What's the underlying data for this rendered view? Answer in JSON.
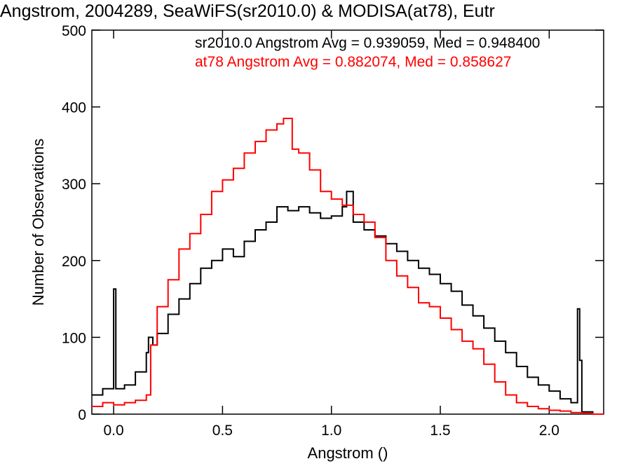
{
  "chart_data": {
    "type": "line",
    "title": "Angstrom, 2004289, SeaWiFS(sr2010.0) & MODISA(at78), Eutr",
    "xlabel": "Angstrom ()",
    "ylabel": "Number of Observations",
    "xlim": [
      -0.1,
      2.25
    ],
    "ylim": [
      0,
      500
    ],
    "x_ticks": [
      0.0,
      0.5,
      1.0,
      1.5,
      2.0
    ],
    "x_tick_labels": [
      "0.0",
      "0.5",
      "1.0",
      "1.5",
      "2.0"
    ],
    "y_ticks": [
      0,
      100,
      200,
      300,
      400,
      500
    ],
    "y_tick_labels": [
      "0",
      "100",
      "200",
      "300",
      "400",
      "500"
    ],
    "grid": false,
    "annotations": [
      {
        "text": "sr2010.0 Angstrom Avg = 0.939059, Med = 0.948400",
        "color": "#000000"
      },
      {
        "text": "at78 Angstrom Avg = 0.882074, Med = 0.858627",
        "color": "#ff0000"
      }
    ],
    "series": [
      {
        "color": "#000000",
        "step": true,
        "x": [
          -0.1,
          -0.05,
          0.0,
          0.01,
          0.05,
          0.1,
          0.15,
          0.16,
          0.18,
          0.2,
          0.25,
          0.3,
          0.35,
          0.4,
          0.45,
          0.5,
          0.55,
          0.6,
          0.65,
          0.7,
          0.75,
          0.8,
          0.85,
          0.9,
          0.95,
          1.0,
          1.05,
          1.07,
          1.1,
          1.15,
          1.2,
          1.25,
          1.3,
          1.35,
          1.4,
          1.45,
          1.5,
          1.55,
          1.6,
          1.65,
          1.7,
          1.75,
          1.8,
          1.85,
          1.9,
          1.95,
          2.0,
          2.05,
          2.1,
          2.13,
          2.14,
          2.15,
          2.2,
          2.25
        ],
        "y": [
          25,
          33,
          163,
          33,
          38,
          55,
          80,
          100,
          90,
          105,
          130,
          150,
          170,
          190,
          200,
          215,
          205,
          225,
          240,
          250,
          270,
          265,
          270,
          262,
          255,
          258,
          270,
          290,
          250,
          240,
          232,
          222,
          212,
          200,
          190,
          182,
          170,
          160,
          142,
          128,
          112,
          95,
          80,
          62,
          48,
          38,
          30,
          20,
          15,
          137,
          70,
          3,
          0,
          0
        ]
      },
      {
        "color": "#ff0000",
        "step": true,
        "x": [
          -0.1,
          -0.05,
          0.0,
          0.05,
          0.1,
          0.15,
          0.17,
          0.2,
          0.25,
          0.3,
          0.35,
          0.4,
          0.45,
          0.5,
          0.55,
          0.6,
          0.65,
          0.7,
          0.75,
          0.78,
          0.82,
          0.85,
          0.9,
          0.95,
          1.0,
          1.05,
          1.1,
          1.15,
          1.2,
          1.25,
          1.3,
          1.35,
          1.4,
          1.45,
          1.5,
          1.55,
          1.6,
          1.65,
          1.7,
          1.75,
          1.8,
          1.85,
          1.9,
          1.95,
          2.0,
          2.05,
          2.1,
          2.15,
          2.2,
          2.25
        ],
        "y": [
          10,
          15,
          12,
          15,
          18,
          25,
          90,
          140,
          175,
          215,
          235,
          260,
          290,
          305,
          320,
          340,
          355,
          370,
          378,
          385,
          345,
          340,
          318,
          290,
          280,
          272,
          260,
          250,
          230,
          200,
          180,
          165,
          145,
          140,
          125,
          110,
          95,
          85,
          65,
          42,
          25,
          15,
          10,
          7,
          5,
          4,
          2,
          1,
          0,
          0
        ]
      }
    ]
  }
}
